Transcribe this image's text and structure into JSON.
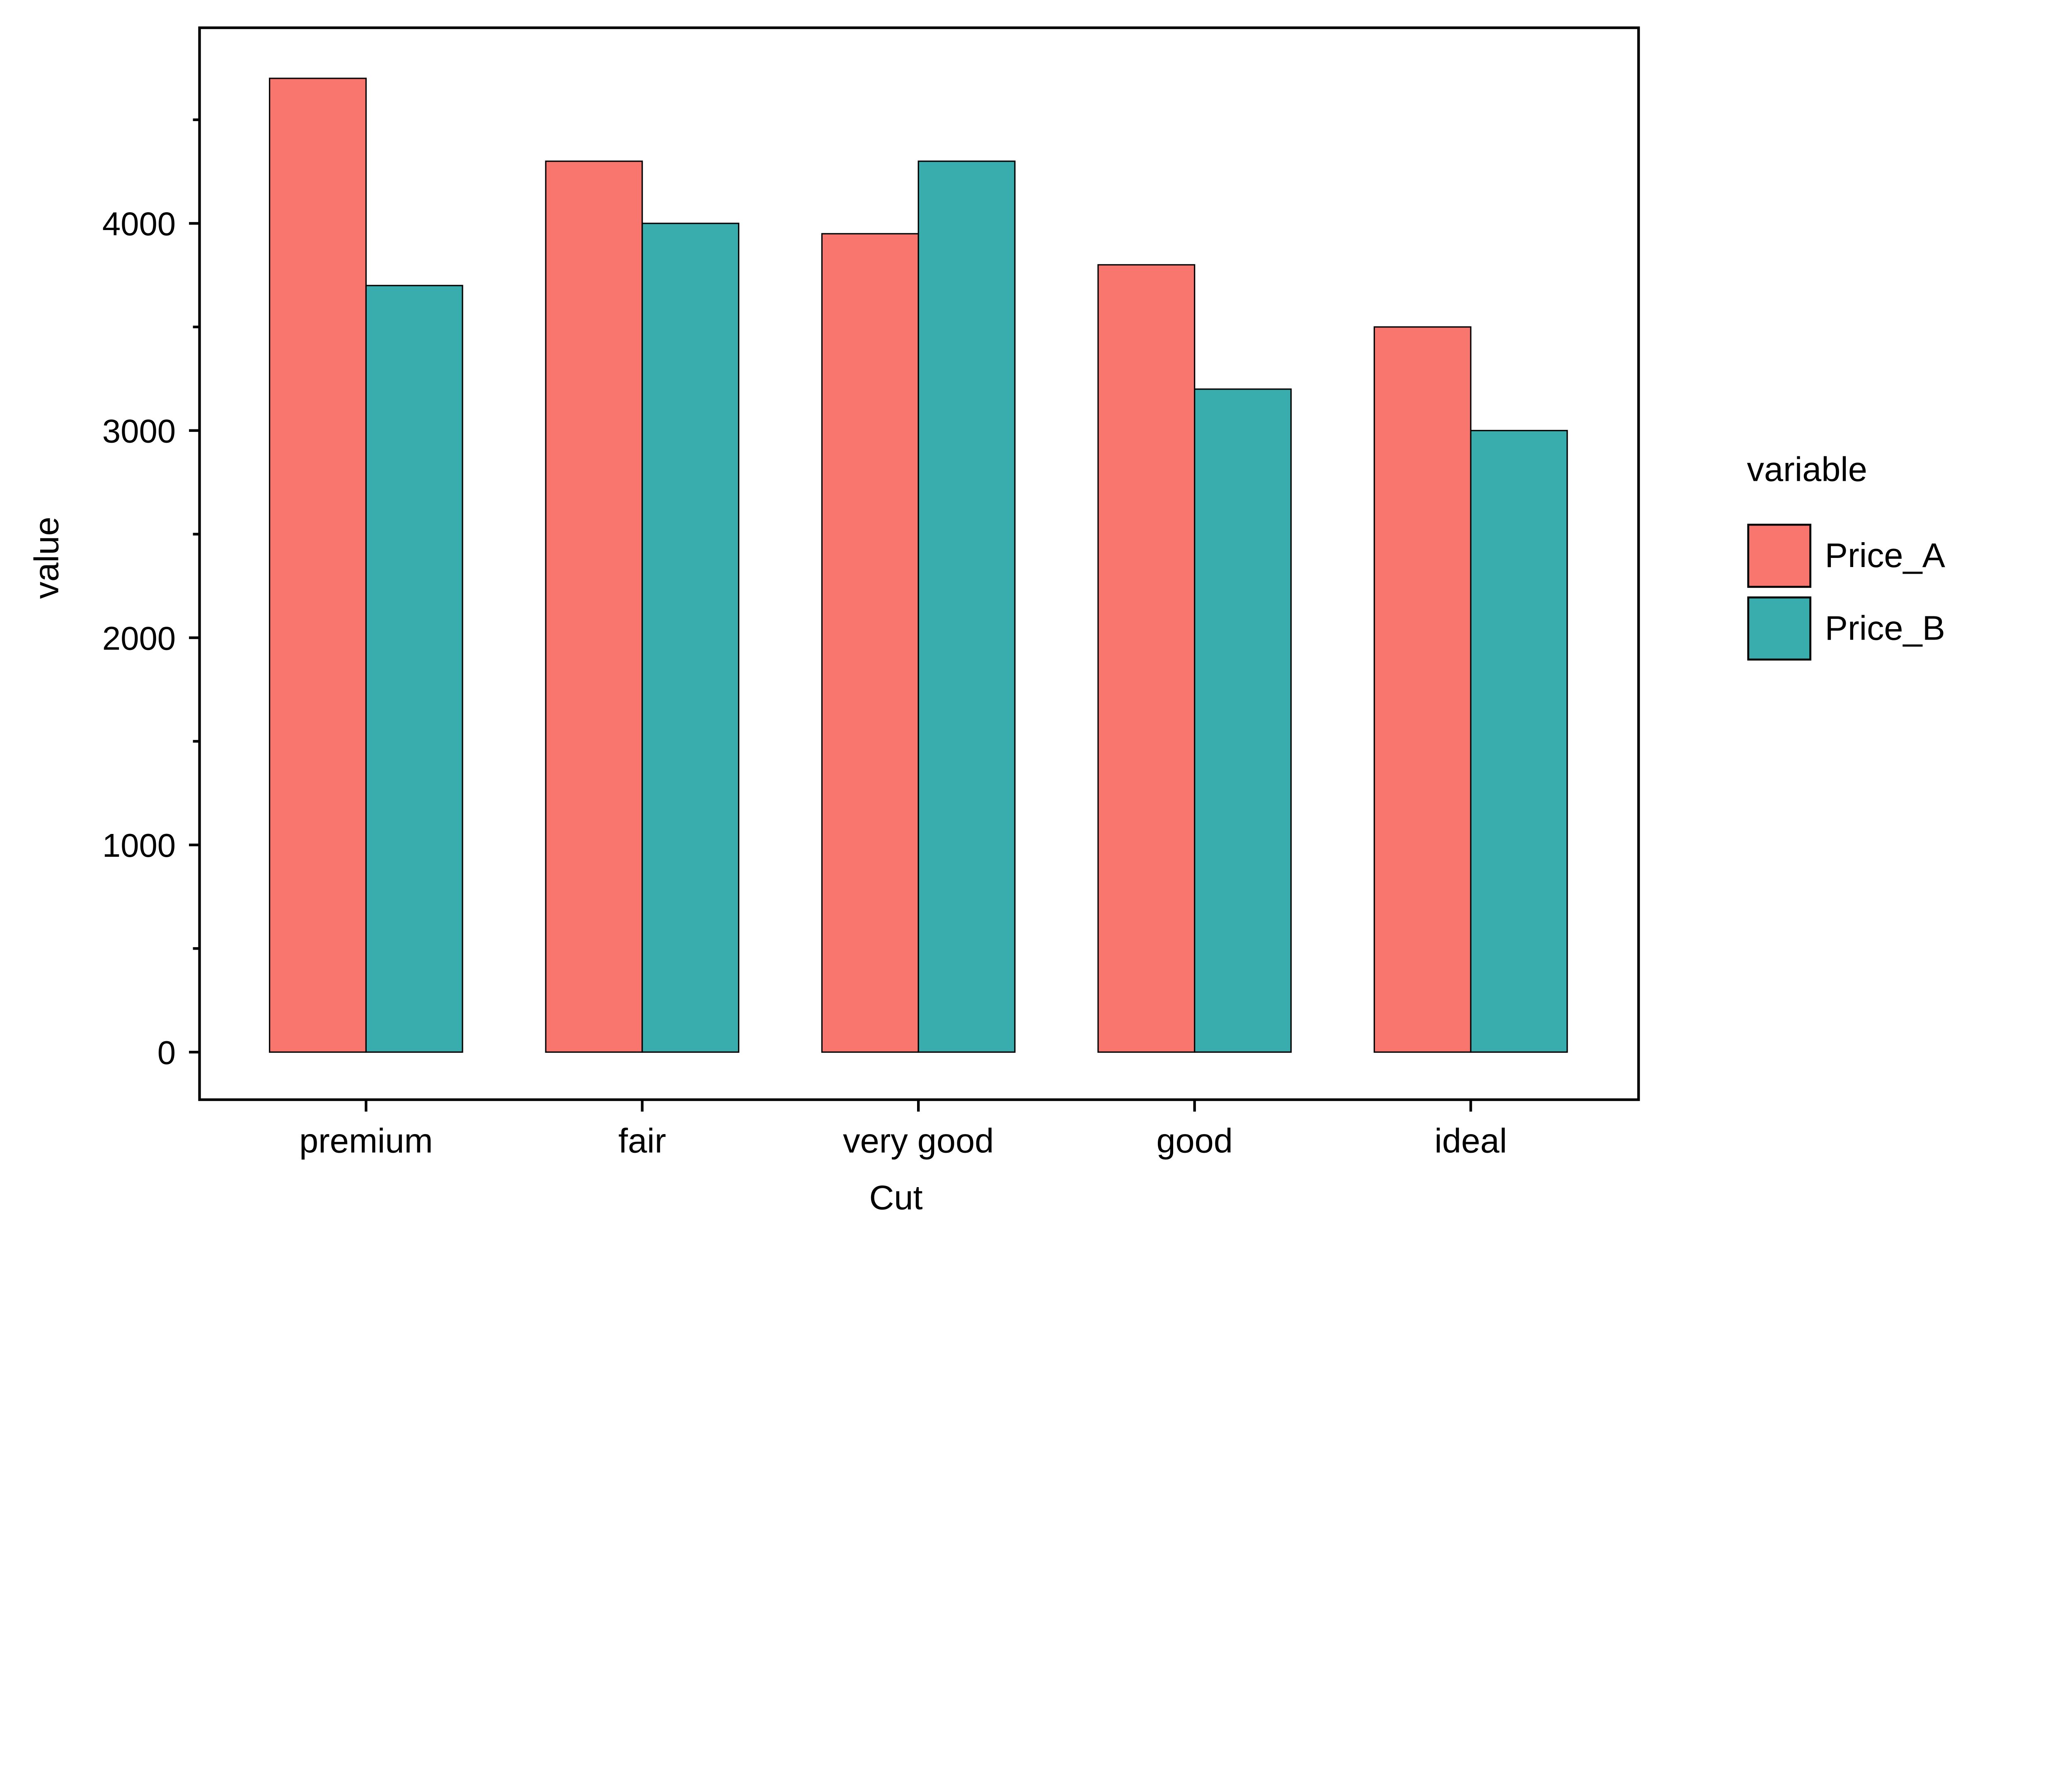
{
  "chart_data": {
    "type": "bar",
    "title": "",
    "xlabel": "Cut",
    "ylabel": "value",
    "categories": [
      "premium",
      "fair",
      "very good",
      "good",
      "ideal"
    ],
    "series": [
      {
        "name": "Price_A",
        "color": "#F8766D",
        "values": [
          4700,
          4300,
          3950,
          3800,
          3500
        ]
      },
      {
        "name": "Price_B",
        "color": "#39ACAD",
        "values": [
          3700,
          4000,
          4300,
          3200,
          3000
        ]
      }
    ],
    "yticks": [
      0,
      1000,
      2000,
      3000,
      4000
    ],
    "yminor_ticks": [
      500,
      1500,
      2500,
      3500,
      4500
    ],
    "ylim": [
      -230,
      4940
    ],
    "grid": false,
    "legend": {
      "title": "variable",
      "placement": "right"
    }
  }
}
